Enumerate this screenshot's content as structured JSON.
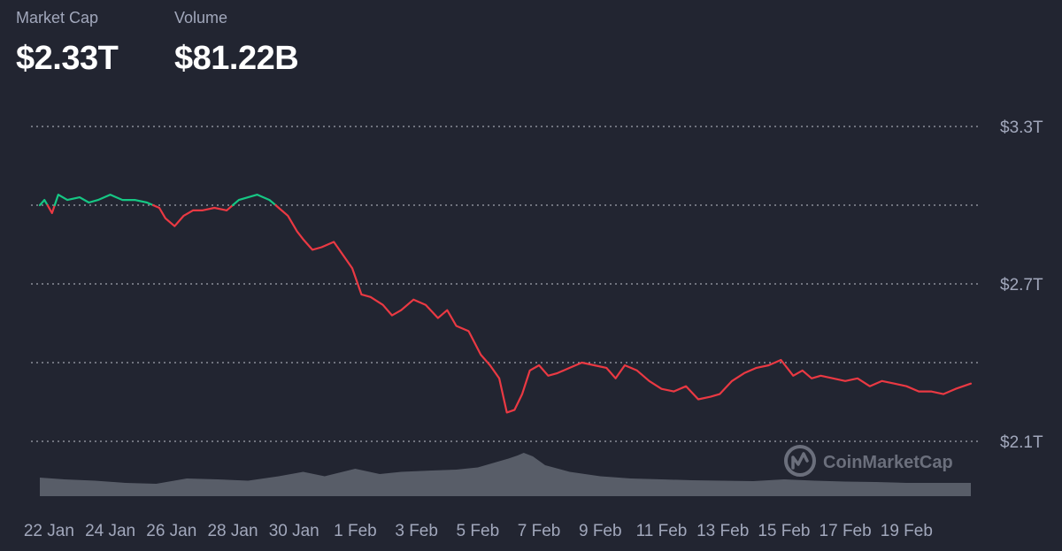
{
  "header": {
    "market_cap": {
      "label": "Market Cap",
      "value": "$2.33T"
    },
    "volume": {
      "label": "Volume",
      "value": "$81.22B"
    }
  },
  "watermark": {
    "text": "CoinMarketCap",
    "icon": "coinmarketcap-logo-icon"
  },
  "colors": {
    "background": "#222531",
    "up": "#16c784",
    "down": "#ea3943",
    "volume": "#5c606c",
    "grid": "#c8ccd6",
    "text": "#a1a7bb"
  },
  "chart_data": {
    "type": "line",
    "title": "",
    "xlabel": "",
    "ylabel": "",
    "ylim": [
      2.1,
      3.3
    ],
    "y_ticks": [
      {
        "value": 3.3,
        "label": "$3.3T"
      },
      {
        "value": 3.0,
        "label": ""
      },
      {
        "value": 2.7,
        "label": "$2.7T"
      },
      {
        "value": 2.4,
        "label": ""
      },
      {
        "value": 2.1,
        "label": "$2.1T"
      }
    ],
    "baseline": 3.0,
    "x_ticks": [
      {
        "x": 0,
        "label": "22 Jan"
      },
      {
        "x": 2,
        "label": "24 Jan"
      },
      {
        "x": 4,
        "label": "26 Jan"
      },
      {
        "x": 6,
        "label": "28 Jan"
      },
      {
        "x": 8,
        "label": "30 Jan"
      },
      {
        "x": 10,
        "label": "1 Feb"
      },
      {
        "x": 12,
        "label": "3 Feb"
      },
      {
        "x": 14,
        "label": "5 Feb"
      },
      {
        "x": 16,
        "label": "7 Feb"
      },
      {
        "x": 18,
        "label": "9 Feb"
      },
      {
        "x": 20,
        "label": "11 Feb"
      },
      {
        "x": 22,
        "label": "13 Feb"
      },
      {
        "x": 24,
        "label": "15 Feb"
      },
      {
        "x": 26,
        "label": "17 Feb"
      },
      {
        "x": 28,
        "label": "19 Feb"
      }
    ],
    "xlim": [
      -0.3,
      30.1
    ],
    "series": [
      {
        "metric": "market cap (trillion USD)",
        "x": [
          -0.3,
          -0.15,
          0.1,
          0.3,
          0.6,
          1.0,
          1.3,
          1.6,
          2.0,
          2.4,
          2.8,
          3.2,
          3.6,
          3.8,
          4.1,
          4.4,
          4.7,
          5.0,
          5.4,
          5.8,
          6.2,
          6.5,
          6.8,
          7.2,
          7.5,
          7.8,
          8.1,
          8.3,
          8.6,
          8.9,
          9.3,
          9.6,
          9.9,
          10.2,
          10.5,
          10.9,
          11.2,
          11.5,
          11.9,
          12.3,
          12.7,
          13.0,
          13.3,
          13.7,
          14.1,
          14.4,
          14.7,
          14.95,
          15.2,
          15.45,
          15.7,
          16.0,
          16.3,
          16.6,
          17.0,
          17.4,
          17.8,
          18.2,
          18.5,
          18.8,
          19.2,
          19.6,
          20.0,
          20.4,
          20.8,
          21.2,
          21.6,
          21.9,
          22.3,
          22.7,
          23.1,
          23.5,
          23.9,
          24.3,
          24.6,
          24.9,
          25.2,
          25.6,
          26.0,
          26.4,
          26.8,
          27.2,
          27.6,
          28.0,
          28.4,
          28.8,
          29.2,
          29.6,
          30.1
        ],
        "y": [
          3.0,
          3.02,
          2.97,
          3.04,
          3.02,
          3.03,
          3.01,
          3.02,
          3.04,
          3.02,
          3.02,
          3.01,
          2.99,
          2.95,
          2.92,
          2.96,
          2.98,
          2.98,
          2.99,
          2.98,
          3.02,
          3.03,
          3.04,
          3.02,
          2.99,
          2.96,
          2.9,
          2.87,
          2.83,
          2.84,
          2.86,
          2.81,
          2.76,
          2.66,
          2.65,
          2.62,
          2.58,
          2.6,
          2.64,
          2.62,
          2.57,
          2.6,
          2.54,
          2.52,
          2.43,
          2.39,
          2.34,
          2.21,
          2.22,
          2.28,
          2.37,
          2.39,
          2.35,
          2.36,
          2.38,
          2.4,
          2.39,
          2.38,
          2.34,
          2.39,
          2.37,
          2.33,
          2.3,
          2.29,
          2.31,
          2.26,
          2.27,
          2.28,
          2.33,
          2.36,
          2.38,
          2.39,
          2.41,
          2.35,
          2.37,
          2.34,
          2.35,
          2.34,
          2.33,
          2.34,
          2.31,
          2.33,
          2.32,
          2.31,
          2.29,
          2.29,
          2.28,
          2.3,
          2.32
        ]
      },
      {
        "metric": "trading volume (relative)",
        "x": [
          -0.3,
          0.5,
          1.5,
          2.5,
          3.5,
          4.5,
          5.5,
          6.5,
          7.5,
          8.3,
          9.0,
          10.0,
          10.8,
          11.5,
          12.5,
          13.3,
          14.0,
          14.5,
          15.0,
          15.3,
          15.5,
          15.8,
          16.2,
          17.0,
          18.0,
          19.0,
          20.0,
          21.0,
          22.0,
          23.0,
          24.0,
          25.0,
          26.0,
          27.0,
          28.0,
          29.0,
          30.1
        ],
        "y": [
          0.42,
          0.38,
          0.35,
          0.3,
          0.28,
          0.4,
          0.38,
          0.35,
          0.45,
          0.55,
          0.45,
          0.62,
          0.5,
          0.55,
          0.58,
          0.6,
          0.65,
          0.75,
          0.85,
          0.92,
          0.98,
          0.9,
          0.7,
          0.55,
          0.45,
          0.4,
          0.38,
          0.36,
          0.35,
          0.34,
          0.38,
          0.35,
          0.33,
          0.32,
          0.3,
          0.3,
          0.3
        ]
      }
    ]
  }
}
